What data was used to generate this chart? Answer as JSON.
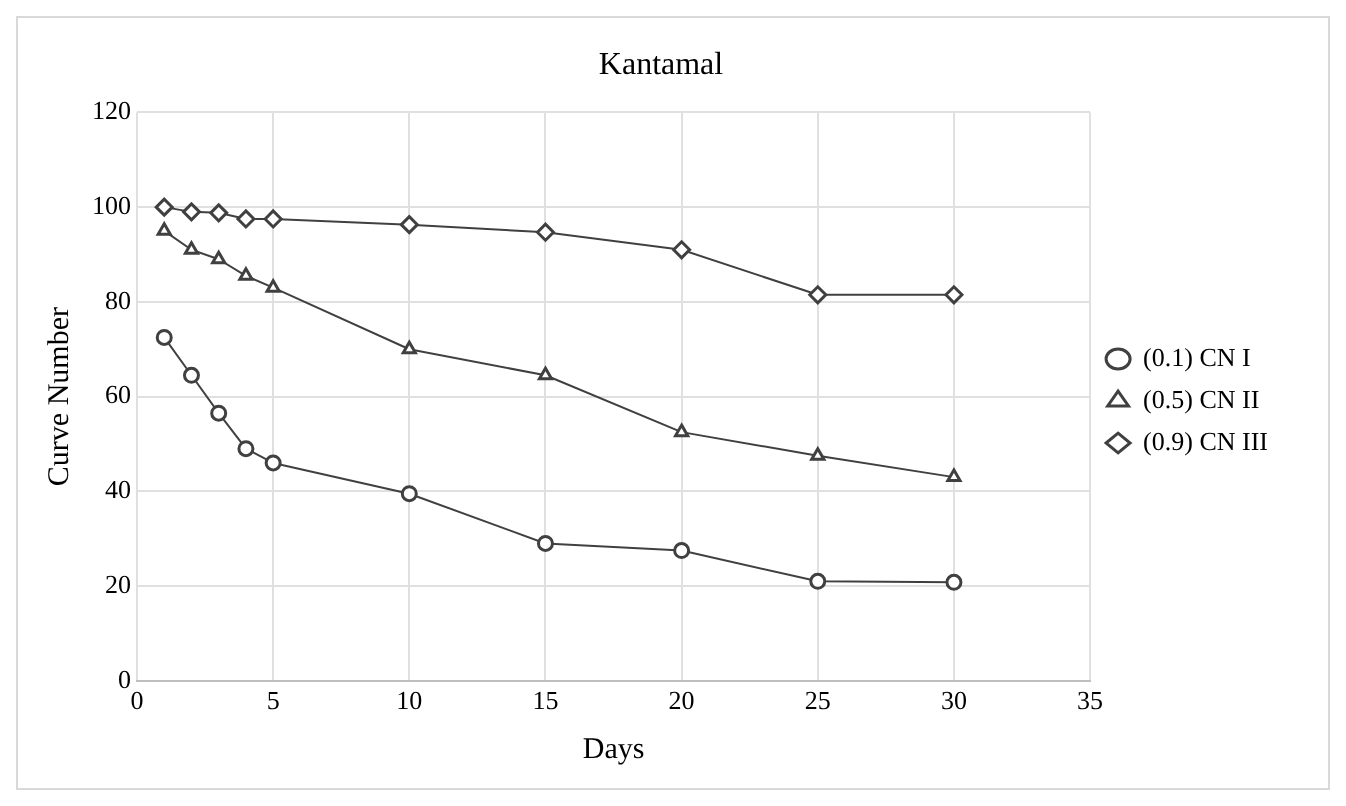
{
  "chart_data": {
    "type": "line",
    "title": "Kantamal",
    "xlabel": "Days",
    "ylabel": "Curve Number",
    "x": [
      1,
      2,
      3,
      4,
      5,
      10,
      15,
      20,
      25,
      30
    ],
    "series": [
      {
        "name": "(0.1) CN I",
        "color": "#404040",
        "marker": "circle",
        "values": [
          72.5,
          64.5,
          56.5,
          49,
          46,
          39.5,
          29,
          27.5,
          21,
          20.8
        ]
      },
      {
        "name": "(0.5) CN II",
        "color": "#404040",
        "marker": "triangle",
        "values": [
          95,
          91,
          89,
          85.5,
          83,
          70,
          64.5,
          52.5,
          47.5,
          43
        ]
      },
      {
        "name": "(0.9) CN III",
        "color": "#404040",
        "marker": "diamond",
        "values": [
          100,
          99,
          98.8,
          97.5,
          97.5,
          96.3,
          94.7,
          91,
          81.5,
          81.5
        ]
      }
    ],
    "xlim": [
      0,
      35
    ],
    "xticks": [
      0,
      5,
      10,
      15,
      20,
      25,
      30,
      35
    ],
    "ylim": [
      0,
      120
    ],
    "yticks": [
      0,
      20,
      40,
      60,
      80,
      100,
      120
    ],
    "grid": true,
    "legend": "right",
    "line_style": "solid"
  }
}
